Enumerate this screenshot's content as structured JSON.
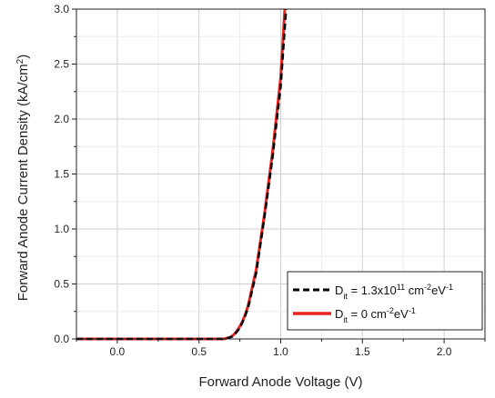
{
  "chart_data": {
    "type": "line",
    "title": "",
    "xlabel": "Forward Anode Voltage (V)",
    "ylabel_html": "Forward Anode Current Density (kA/cm",
    "ylabel_sup": "2",
    "ylabel_close": ")",
    "xlim": [
      -0.25,
      2.25
    ],
    "ylim": [
      0.0,
      3.0
    ],
    "xticks": [
      0.0,
      0.5,
      1.0,
      1.5,
      2.0
    ],
    "xtick_labels": [
      "0.0",
      "0.5",
      "1.0",
      "1.5",
      "2.0"
    ],
    "yticks": [
      0.0,
      0.5,
      1.0,
      1.5,
      2.0,
      2.5,
      3.0
    ],
    "ytick_labels": [
      "0.0",
      "0.5",
      "1.0",
      "1.5",
      "2.0",
      "2.5",
      "3.0"
    ],
    "grid": true,
    "legend_position": "bottom-right",
    "series": [
      {
        "legend_parts": [
          "D",
          "it",
          " = 1.3x10",
          "11",
          " cm",
          "-2",
          "eV",
          "-1"
        ],
        "color": "#000000",
        "style": "dashed",
        "x": [
          -0.25,
          0.6,
          0.65,
          0.68,
          0.7,
          0.72,
          0.74,
          0.76,
          0.78,
          0.8,
          0.85,
          0.9,
          0.95,
          1.0,
          1.033
        ],
        "y": [
          0.0,
          0.0,
          0.0,
          0.01,
          0.02,
          0.045,
          0.08,
          0.13,
          0.2,
          0.28,
          0.6,
          1.1,
          1.65,
          2.3,
          3.0
        ]
      },
      {
        "legend_parts": [
          "D",
          "it",
          " = 0 cm",
          "-2",
          "eV",
          "-1"
        ],
        "color": "#e8231e",
        "style": "solid",
        "x": [
          -0.25,
          0.6,
          0.65,
          0.68,
          0.7,
          0.72,
          0.74,
          0.76,
          0.78,
          0.8,
          0.85,
          0.9,
          0.95,
          1.0,
          1.025
        ],
        "y": [
          0.0,
          0.0,
          0.0,
          0.01,
          0.022,
          0.05,
          0.09,
          0.14,
          0.21,
          0.3,
          0.63,
          1.13,
          1.7,
          2.38,
          3.0
        ]
      }
    ]
  }
}
